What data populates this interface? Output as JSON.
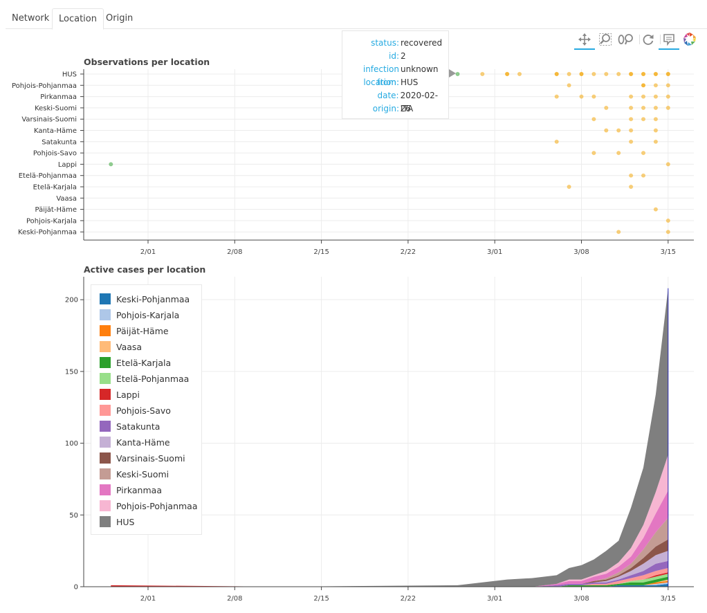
{
  "tabs": [
    {
      "label": "Network",
      "active": false
    },
    {
      "label": "Location",
      "active": true
    },
    {
      "label": "Origin",
      "active": false
    }
  ],
  "toolbar": [
    {
      "icon": "pan-icon",
      "active": true
    },
    {
      "icon": "box-zoom-icon",
      "active": false
    },
    {
      "icon": "wheel-zoom-icon",
      "active": false
    },
    {
      "icon": "reset-icon",
      "active": false
    },
    {
      "icon": "hover-icon",
      "active": true
    },
    {
      "icon": "bokeh-logo-icon",
      "active": false
    }
  ],
  "tooltip": {
    "rows": [
      {
        "key": "status:",
        "value": "recovered"
      },
      {
        "key": "id:",
        "value": "2"
      },
      {
        "key": "infection from:",
        "value": "unknown"
      },
      {
        "key": "location:",
        "value": "HUS"
      },
      {
        "key": "date:",
        "value": "2020-02-26"
      },
      {
        "key": "origin:",
        "value": "ITA"
      }
    ]
  },
  "chart_data": [
    {
      "type": "scatter",
      "title": "Observations per location",
      "xlabel": "",
      "ylabel": "",
      "x_ticks": [
        "2/01",
        "2/08",
        "2/15",
        "2/22",
        "3/01",
        "3/08",
        "3/15"
      ],
      "categories": [
        "HUS",
        "Pohjois-Pohjanmaa",
        "Pirkanmaa",
        "Keski-Suomi",
        "Varsinais-Suomi",
        "Kanta-Häme",
        "Satakunta",
        "Pohjois-Savo",
        "Lappi",
        "Etelä-Pohjanmaa",
        "Etelä-Karjala",
        "Vaasa",
        "Päijät-Häme",
        "Pohjois-Karjala",
        "Keski-Pohjanmaa"
      ],
      "grid": true,
      "colors": {
        "recovered": "#2ca02c",
        "confirmed": "#f4a400"
      },
      "series": [
        {
          "name": "recovered",
          "points": [
            {
              "date": "2020-01-29",
              "location": "Lappi"
            },
            {
              "date": "2020-02-26",
              "location": "HUS"
            }
          ]
        },
        {
          "name": "confirmed",
          "points": [
            {
              "date": "2020-02-28",
              "location": "HUS"
            },
            {
              "date": "2020-03-01",
              "location": "HUS"
            },
            {
              "date": "2020-03-01",
              "location": "HUS"
            },
            {
              "date": "2020-03-02",
              "location": "HUS"
            },
            {
              "date": "2020-03-05",
              "location": "HUS"
            },
            {
              "date": "2020-03-05",
              "location": "HUS"
            },
            {
              "date": "2020-03-06",
              "location": "HUS"
            },
            {
              "date": "2020-03-07",
              "location": "HUS"
            },
            {
              "date": "2020-03-07",
              "location": "HUS"
            },
            {
              "date": "2020-03-08",
              "location": "HUS"
            },
            {
              "date": "2020-03-09",
              "location": "HUS"
            },
            {
              "date": "2020-03-10",
              "location": "HUS"
            },
            {
              "date": "2020-03-11",
              "location": "HUS"
            },
            {
              "date": "2020-03-11",
              "location": "HUS"
            },
            {
              "date": "2020-03-12",
              "location": "HUS"
            },
            {
              "date": "2020-03-12",
              "location": "HUS"
            },
            {
              "date": "2020-03-13",
              "location": "HUS"
            },
            {
              "date": "2020-03-13",
              "location": "HUS"
            },
            {
              "date": "2020-03-14",
              "location": "HUS"
            },
            {
              "date": "2020-03-14",
              "location": "HUS"
            },
            {
              "date": "2020-03-06",
              "location": "Pohjois-Pohjanmaa"
            },
            {
              "date": "2020-03-12",
              "location": "Pohjois-Pohjanmaa"
            },
            {
              "date": "2020-03-12",
              "location": "Pohjois-Pohjanmaa"
            },
            {
              "date": "2020-03-13",
              "location": "Pohjois-Pohjanmaa"
            },
            {
              "date": "2020-03-14",
              "location": "Pohjois-Pohjanmaa"
            },
            {
              "date": "2020-03-05",
              "location": "Pirkanmaa"
            },
            {
              "date": "2020-03-07",
              "location": "Pirkanmaa"
            },
            {
              "date": "2020-03-08",
              "location": "Pirkanmaa"
            },
            {
              "date": "2020-03-11",
              "location": "Pirkanmaa"
            },
            {
              "date": "2020-03-12",
              "location": "Pirkanmaa"
            },
            {
              "date": "2020-03-13",
              "location": "Pirkanmaa"
            },
            {
              "date": "2020-03-14",
              "location": "Pirkanmaa"
            },
            {
              "date": "2020-03-09",
              "location": "Keski-Suomi"
            },
            {
              "date": "2020-03-11",
              "location": "Keski-Suomi"
            },
            {
              "date": "2020-03-12",
              "location": "Keski-Suomi"
            },
            {
              "date": "2020-03-13",
              "location": "Keski-Suomi"
            },
            {
              "date": "2020-03-14",
              "location": "Keski-Suomi"
            },
            {
              "date": "2020-03-08",
              "location": "Varsinais-Suomi"
            },
            {
              "date": "2020-03-11",
              "location": "Varsinais-Suomi"
            },
            {
              "date": "2020-03-12",
              "location": "Varsinais-Suomi"
            },
            {
              "date": "2020-03-13",
              "location": "Varsinais-Suomi"
            },
            {
              "date": "2020-03-10",
              "location": "Kanta-Häme"
            },
            {
              "date": "2020-03-09",
              "location": "Kanta-Häme"
            },
            {
              "date": "2020-03-11",
              "location": "Kanta-Häme"
            },
            {
              "date": "2020-03-13",
              "location": "Kanta-Häme"
            },
            {
              "date": "2020-03-05",
              "location": "Satakunta"
            },
            {
              "date": "2020-03-11",
              "location": "Satakunta"
            },
            {
              "date": "2020-03-13",
              "location": "Satakunta"
            },
            {
              "date": "2020-03-08",
              "location": "Pohjois-Savo"
            },
            {
              "date": "2020-03-10",
              "location": "Pohjois-Savo"
            },
            {
              "date": "2020-03-12",
              "location": "Pohjois-Savo"
            },
            {
              "date": "2020-03-14",
              "location": "Lappi"
            },
            {
              "date": "2020-03-11",
              "location": "Etelä-Pohjanmaa"
            },
            {
              "date": "2020-03-12",
              "location": "Etelä-Pohjanmaa"
            },
            {
              "date": "2020-03-06",
              "location": "Etelä-Karjala"
            },
            {
              "date": "2020-03-11",
              "location": "Etelä-Karjala"
            },
            {
              "date": "2020-03-13",
              "location": "Päijät-Häme"
            },
            {
              "date": "2020-03-14",
              "location": "Pohjois-Karjala"
            },
            {
              "date": "2020-03-10",
              "location": "Keski-Pohjanmaa"
            },
            {
              "date": "2020-03-14",
              "location": "Keski-Pohjanmaa"
            }
          ]
        }
      ]
    },
    {
      "type": "area",
      "title": "Active cases per location",
      "xlabel": "",
      "ylabel": "",
      "stacked": true,
      "x_ticks": [
        "2/01",
        "2/08",
        "2/15",
        "2/22",
        "3/01",
        "3/08",
        "3/15"
      ],
      "y_ticks": [
        0,
        50,
        100,
        150,
        200
      ],
      "ylim": [
        0,
        216
      ],
      "grid": true,
      "legend_position": "top-left",
      "x": [
        "2020-01-29",
        "2020-02-12",
        "2020-02-26",
        "2020-03-01",
        "2020-03-03",
        "2020-03-05",
        "2020-03-06",
        "2020-03-07",
        "2020-03-08",
        "2020-03-09",
        "2020-03-10",
        "2020-03-11",
        "2020-03-12",
        "2020-03-13",
        "2020-03-14"
      ],
      "series": [
        {
          "name": "Keski-Pohjanmaa",
          "color": "#1f77b4",
          "values": [
            0,
            0,
            0,
            0,
            0,
            0,
            0,
            0,
            0,
            0,
            1,
            1,
            1,
            1,
            2
          ]
        },
        {
          "name": "Pohjois-Karjala",
          "color": "#aec7e8",
          "values": [
            0,
            0,
            0,
            0,
            0,
            0,
            0,
            0,
            0,
            0,
            0,
            0,
            0,
            1,
            1
          ]
        },
        {
          "name": "Päijät-Häme",
          "color": "#ff7f0e",
          "values": [
            0,
            0,
            0,
            0,
            0,
            0,
            0,
            0,
            0,
            0,
            0,
            0,
            0,
            1,
            1
          ]
        },
        {
          "name": "Vaasa",
          "color": "#ffbb78",
          "values": [
            0,
            0,
            0,
            0,
            0,
            0,
            0,
            0,
            0,
            0,
            0,
            0,
            0,
            0,
            1
          ]
        },
        {
          "name": "Etelä-Karjala",
          "color": "#2ca02c",
          "values": [
            0,
            0,
            0,
            0,
            0,
            0,
            1,
            1,
            1,
            1,
            1,
            2,
            2,
            2,
            2
          ]
        },
        {
          "name": "Etelä-Pohjanmaa",
          "color": "#98df8a",
          "values": [
            0,
            0,
            0,
            0,
            0,
            0,
            0,
            0,
            0,
            0,
            0,
            1,
            2,
            2,
            2
          ]
        },
        {
          "name": "Lappi",
          "color": "#d62728",
          "values": [
            1,
            0,
            0,
            0,
            0,
            0,
            0,
            0,
            0,
            0,
            0,
            0,
            0,
            1,
            1
          ]
        },
        {
          "name": "Pohjois-Savo",
          "color": "#ff9896",
          "values": [
            0,
            0,
            0,
            0,
            0,
            0,
            0,
            0,
            1,
            1,
            2,
            2,
            3,
            3,
            3
          ]
        },
        {
          "name": "Satakunta",
          "color": "#9467bd",
          "values": [
            0,
            0,
            0,
            0,
            0,
            1,
            1,
            1,
            1,
            1,
            1,
            2,
            3,
            5,
            5
          ]
        },
        {
          "name": "Kanta-Häme",
          "color": "#c5b0d5",
          "values": [
            0,
            0,
            0,
            0,
            0,
            0,
            0,
            0,
            0,
            1,
            2,
            3,
            5,
            6,
            7
          ]
        },
        {
          "name": "Varsinais-Suomi",
          "color": "#8c564b",
          "values": [
            0,
            0,
            0,
            0,
            0,
            0,
            0,
            0,
            1,
            1,
            1,
            2,
            4,
            6,
            8
          ]
        },
        {
          "name": "Keski-Suomi",
          "color": "#c49c94",
          "values": [
            0,
            0,
            0,
            0,
            0,
            0,
            0,
            0,
            0,
            1,
            2,
            3,
            6,
            10,
            15
          ]
        },
        {
          "name": "Pirkanmaa",
          "color": "#e377c2",
          "values": [
            0,
            0,
            0,
            0,
            0,
            1,
            2,
            2,
            3,
            3,
            4,
            5,
            8,
            13,
            19
          ]
        },
        {
          "name": "Pohjois-Pohjanmaa",
          "color": "#f7b6d2",
          "values": [
            0,
            0,
            0,
            0,
            0,
            0,
            1,
            1,
            1,
            2,
            3,
            6,
            9,
            15,
            25
          ]
        },
        {
          "name": "HUS",
          "color": "#7f7f7f",
          "values": [
            0,
            0,
            1,
            5,
            6,
            6,
            8,
            10,
            11,
            14,
            15,
            28,
            40,
            68,
            116
          ]
        }
      ]
    }
  ]
}
